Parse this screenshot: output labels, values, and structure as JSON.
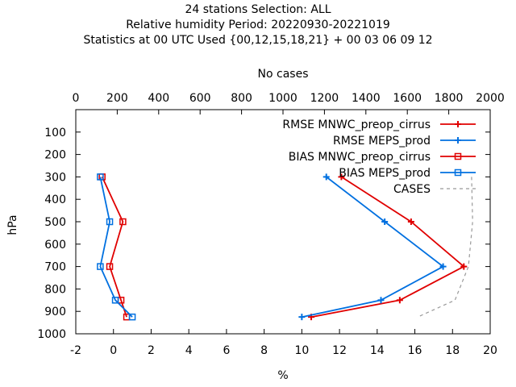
{
  "chart_data": {
    "type": "line",
    "title_lines": [
      "24 stations Selection: ALL",
      "Relative humidity  Period: 20220930-20221019",
      "Statistics at 00 UTC  Used {00,12,15,18,21} + 00 03 06 09 12"
    ],
    "xlabel": "%",
    "ylabel": "hPa",
    "x2label": "No cases",
    "xlim": [
      -2,
      20
    ],
    "ylim": [
      1000,
      0
    ],
    "x2lim": [
      0,
      2000
    ],
    "xticks": [
      "-2",
      "0",
      "2",
      "4",
      "6",
      "8",
      "10",
      "12",
      "14",
      "16",
      "18",
      "20"
    ],
    "yticks": [
      "100",
      "200",
      "300",
      "400",
      "500",
      "600",
      "700",
      "800",
      "900",
      "1000"
    ],
    "x2ticks": [
      "0",
      "200",
      "400",
      "600",
      "800",
      "1000",
      "1200",
      "1400",
      "1600",
      "1800",
      "2000"
    ],
    "grid": false,
    "legend_position": "top-right",
    "series": [
      {
        "name": "RMSE MNWC_preop_cirrus",
        "color": "#e00000",
        "marker": "plus",
        "dashed": false,
        "x": [
          12.1,
          15.8,
          18.6,
          15.2,
          10.5
        ],
        "y": [
          300,
          500,
          700,
          850,
          925
        ]
      },
      {
        "name": "RMSE MEPS_prod",
        "color": "#0070e0",
        "marker": "plus",
        "dashed": false,
        "x": [
          11.3,
          14.4,
          17.5,
          14.2,
          10.0
        ],
        "y": [
          300,
          500,
          700,
          850,
          925
        ]
      },
      {
        "name": "BIAS MNWC_preop_cirrus",
        "color": "#e00000",
        "marker": "square",
        "dashed": false,
        "x": [
          -0.6,
          0.5,
          -0.2,
          0.4,
          0.7
        ],
        "y": [
          300,
          500,
          700,
          850,
          925
        ]
      },
      {
        "name": "BIAS MEPS_prod",
        "color": "#0070e0",
        "marker": "square",
        "dashed": false,
        "x": [
          -0.7,
          -0.2,
          -0.7,
          0.1,
          1.0
        ],
        "y": [
          300,
          500,
          700,
          850,
          925
        ]
      },
      {
        "name": "CASES",
        "color": "#999999",
        "marker": "none",
        "dashed": true,
        "axis": "x2",
        "x": [
          1910,
          1915,
          1895,
          1830,
          1650
        ],
        "y": [
          300,
          500,
          700,
          850,
          925
        ]
      }
    ]
  }
}
